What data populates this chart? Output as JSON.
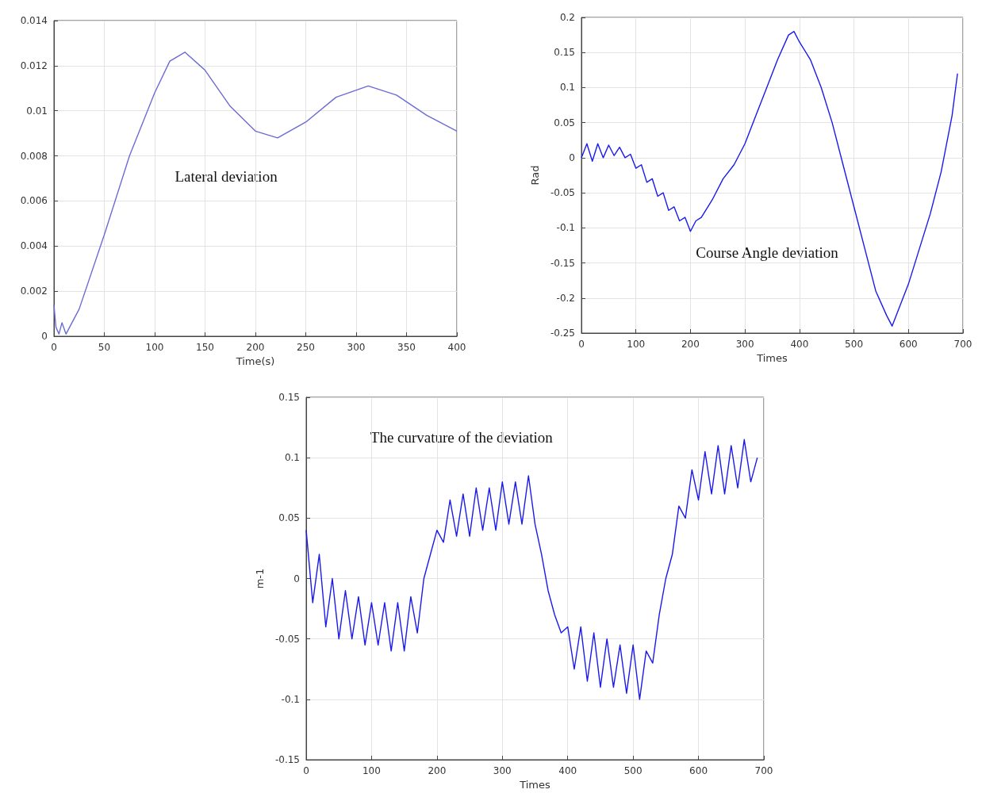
{
  "chart_data": [
    {
      "type": "line",
      "xlabel": "Time(s)",
      "xlim": [
        0,
        400
      ],
      "xticks": [
        0,
        50,
        100,
        150,
        200,
        250,
        300,
        350,
        400
      ],
      "ylim": [
        0,
        0.014
      ],
      "yticks": [
        0,
        0.002,
        0.004,
        0.006,
        0.008,
        0.01,
        0.012,
        0.014
      ],
      "grid": true,
      "annotations": [
        "Lateral deviation"
      ],
      "series": [
        {
          "color": "#6b6bd6",
          "x": [
            0,
            2,
            5,
            8,
            12,
            25,
            50,
            75,
            100,
            115,
            130,
            150,
            175,
            200,
            222,
            250,
            280,
            312,
            340,
            370,
            400
          ],
          "values": [
            0.0014,
            0.0004,
            0.0001,
            0.0006,
            0.0001,
            0.0012,
            0.0045,
            0.008,
            0.0108,
            0.0122,
            0.0126,
            0.0118,
            0.0102,
            0.0091,
            0.0088,
            0.0095,
            0.0106,
            0.0111,
            0.0107,
            0.0098,
            0.0091
          ]
        }
      ]
    },
    {
      "type": "line",
      "xlabel": "Times",
      "ylabel": "Rad",
      "xlim": [
        0,
        700
      ],
      "xticks": [
        0,
        100,
        200,
        300,
        400,
        500,
        600,
        700
      ],
      "ylim": [
        -0.25,
        0.2
      ],
      "yticks": [
        -0.25,
        -0.2,
        -0.15,
        -0.1,
        -0.05,
        0,
        0.05,
        0.1,
        0.15,
        0.2
      ],
      "grid": true,
      "annotations": [
        "Course Angle deviation"
      ],
      "series": [
        {
          "color": "#1a1aee",
          "x": [
            0,
            10,
            20,
            30,
            40,
            50,
            60,
            70,
            80,
            90,
            100,
            110,
            120,
            130,
            140,
            150,
            160,
            170,
            180,
            190,
            200,
            210,
            220,
            240,
            260,
            280,
            300,
            320,
            340,
            360,
            380,
            390,
            400,
            420,
            440,
            460,
            480,
            500,
            520,
            540,
            560,
            570,
            580,
            600,
            620,
            640,
            660,
            680,
            690
          ],
          "values": [
            0.0,
            0.02,
            -0.005,
            0.02,
            0.0,
            0.018,
            0.003,
            0.015,
            0.0,
            0.005,
            -0.015,
            -0.01,
            -0.035,
            -0.03,
            -0.055,
            -0.05,
            -0.075,
            -0.07,
            -0.09,
            -0.085,
            -0.105,
            -0.09,
            -0.085,
            -0.06,
            -0.03,
            -0.01,
            0.02,
            0.06,
            0.1,
            0.14,
            0.175,
            0.18,
            0.165,
            0.14,
            0.1,
            0.05,
            -0.01,
            -0.07,
            -0.13,
            -0.19,
            -0.225,
            -0.24,
            -0.22,
            -0.18,
            -0.13,
            -0.08,
            -0.02,
            0.06,
            0.12
          ]
        }
      ]
    },
    {
      "type": "line",
      "xlabel": "Times",
      "ylabel": "m-1",
      "xlim": [
        0,
        700
      ],
      "xticks": [
        0,
        100,
        200,
        300,
        400,
        500,
        600,
        700
      ],
      "ylim": [
        -0.15,
        0.15
      ],
      "yticks": [
        -0.15,
        -0.1,
        -0.05,
        0,
        0.05,
        0.1,
        0.15
      ],
      "grid": true,
      "annotations": [
        "The curvature of the deviation"
      ],
      "series": [
        {
          "color": "#1a1aee",
          "x": [
            0,
            10,
            20,
            30,
            40,
            50,
            60,
            70,
            80,
            90,
            100,
            110,
            120,
            130,
            140,
            150,
            160,
            170,
            180,
            190,
            200,
            210,
            220,
            230,
            240,
            250,
            260,
            270,
            280,
            290,
            300,
            310,
            320,
            330,
            340,
            350,
            360,
            370,
            380,
            390,
            400,
            410,
            420,
            430,
            440,
            450,
            460,
            470,
            480,
            490,
            500,
            510,
            520,
            530,
            540,
            550,
            560,
            570,
            580,
            590,
            600,
            610,
            620,
            630,
            640,
            650,
            660,
            670,
            680,
            690
          ],
          "values": [
            0.04,
            -0.02,
            0.02,
            -0.04,
            0.0,
            -0.05,
            -0.01,
            -0.05,
            -0.015,
            -0.055,
            -0.02,
            -0.055,
            -0.02,
            -0.06,
            -0.02,
            -0.06,
            -0.015,
            -0.045,
            0.0,
            0.02,
            0.04,
            0.03,
            0.065,
            0.035,
            0.07,
            0.035,
            0.075,
            0.04,
            0.075,
            0.04,
            0.08,
            0.045,
            0.08,
            0.045,
            0.085,
            0.045,
            0.02,
            -0.01,
            -0.03,
            -0.045,
            -0.04,
            -0.075,
            -0.04,
            -0.085,
            -0.045,
            -0.09,
            -0.05,
            -0.09,
            -0.055,
            -0.095,
            -0.055,
            -0.1,
            -0.06,
            -0.07,
            -0.03,
            0.0,
            0.02,
            0.06,
            0.05,
            0.09,
            0.065,
            0.105,
            0.07,
            0.11,
            0.07,
            0.11,
            0.075,
            0.115,
            0.08,
            0.1
          ]
        }
      ]
    }
  ]
}
